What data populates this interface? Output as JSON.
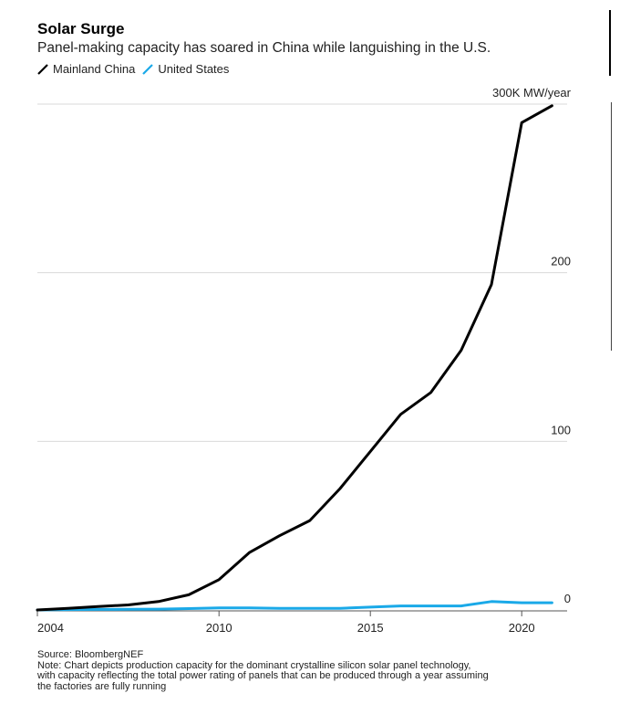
{
  "header": {
    "title": "Solar Surge",
    "subtitle": "Panel-making capacity has soared in China while languishing in the U.S."
  },
  "legend": [
    {
      "label": "Mainland China",
      "color": "#000000"
    },
    {
      "label": "United States",
      "color": "#1aa9e8"
    }
  ],
  "footer": {
    "source": "Source: BloombergNEF",
    "note_lines": [
      "Note: Chart depicts production capacity for the dominant crystalline silicon solar panel technology,",
      "with capacity reflecting the total power rating of panels that can be produced through a year assuming",
      "the factories are fully running"
    ]
  },
  "chart_data": {
    "type": "line",
    "title": "Solar Surge",
    "subtitle": "Panel-making capacity has soared in China while languishing in the U.S.",
    "xlabel": "",
    "ylabel": "",
    "ylim": [
      0,
      300
    ],
    "xlim": [
      2004,
      2021.5
    ],
    "y_unit_label": "300K MW/year",
    "y_ticks": [
      {
        "value": 0,
        "label": "0"
      },
      {
        "value": 100,
        "label": "100"
      },
      {
        "value": 200,
        "label": "200"
      },
      {
        "value": 300,
        "label": "300K MW/year"
      }
    ],
    "x_ticks": [
      {
        "value": 2004,
        "label": "2004"
      },
      {
        "value": 2010,
        "label": "2010"
      },
      {
        "value": 2015,
        "label": "2015"
      },
      {
        "value": 2020,
        "label": "2020"
      }
    ],
    "grid": true,
    "legend_position": "top-left",
    "series": [
      {
        "name": "Mainland China",
        "color": "#000000",
        "x": [
          2004,
          2005,
          2006,
          2007,
          2008,
          2009,
          2010,
          2011,
          2012,
          2013,
          2014,
          2015,
          2016,
          2017,
          2018,
          2019,
          2020,
          2021
        ],
        "values": [
          0,
          1,
          2,
          3,
          5,
          9,
          18,
          34,
          44,
          53,
          72,
          94,
          116,
          129,
          154,
          193,
          289,
          299
        ]
      },
      {
        "name": "United States",
        "color": "#1aa9e8",
        "x": [
          2004,
          2005,
          2006,
          2007,
          2008,
          2009,
          2010,
          2011,
          2012,
          2013,
          2014,
          2015,
          2016,
          2017,
          2018,
          2019,
          2020,
          2021
        ],
        "values": [
          0,
          0.2,
          0.3,
          0.4,
          0.5,
          0.8,
          1.2,
          1.2,
          1.0,
          1.0,
          1.0,
          1.7,
          2.4,
          2.4,
          2.4,
          5.0,
          4.3,
          4.3
        ]
      }
    ]
  }
}
